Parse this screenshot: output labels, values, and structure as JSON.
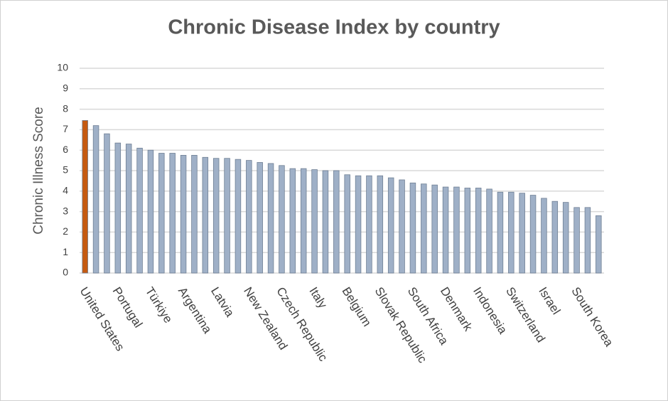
{
  "chart_data": {
    "type": "bar",
    "title": "Chronic Disease Index by country",
    "y_label": "Chronic Illness Score",
    "categories": [
      "United States",
      null,
      null,
      "Portugal",
      null,
      null,
      "Türkiye",
      null,
      null,
      "Argentina",
      null,
      null,
      "Latvia",
      null,
      null,
      "New Zealand",
      null,
      null,
      "Czech Republic",
      null,
      null,
      "Italy",
      null,
      null,
      "Belgium",
      null,
      null,
      "Slovak Republic",
      null,
      null,
      "South Africa",
      null,
      null,
      "Denmark",
      null,
      null,
      "Indonesia",
      null,
      null,
      "Switzerland",
      null,
      null,
      "Israel",
      null,
      null,
      "South Korea",
      null,
      null
    ],
    "values": [
      7.45,
      7.2,
      6.8,
      6.35,
      6.3,
      6.1,
      6.0,
      5.85,
      5.85,
      5.75,
      5.75,
      5.65,
      5.6,
      5.6,
      5.55,
      5.5,
      5.4,
      5.35,
      5.25,
      5.1,
      5.1,
      5.05,
      5.0,
      5.0,
      4.8,
      4.75,
      4.75,
      4.75,
      4.65,
      4.55,
      4.4,
      4.35,
      4.3,
      4.2,
      4.2,
      4.15,
      4.15,
      4.1,
      3.95,
      3.95,
      3.9,
      3.8,
      3.65,
      3.5,
      3.45,
      3.2,
      3.2,
      2.8
    ],
    "colors": [
      "#c55a11",
      "#9fb0c7",
      "#9fb0c7",
      "#9fb0c7",
      "#9fb0c7",
      "#9fb0c7",
      "#9fb0c7",
      "#9fb0c7",
      "#9fb0c7",
      "#9fb0c7",
      "#9fb0c7",
      "#9fb0c7",
      "#9fb0c7",
      "#9fb0c7",
      "#9fb0c7",
      "#9fb0c7",
      "#9fb0c7",
      "#9fb0c7",
      "#9fb0c7",
      "#9fb0c7",
      "#9fb0c7",
      "#9fb0c7",
      "#9fb0c7",
      "#9fb0c7",
      "#9fb0c7",
      "#9fb0c7",
      "#9fb0c7",
      "#9fb0c7",
      "#9fb0c7",
      "#9fb0c7",
      "#9fb0c7",
      "#9fb0c7",
      "#9fb0c7",
      "#9fb0c7",
      "#9fb0c7",
      "#9fb0c7",
      "#9fb0c7",
      "#9fb0c7",
      "#9fb0c7",
      "#9fb0c7",
      "#9fb0c7",
      "#9fb0c7",
      "#9fb0c7",
      "#9fb0c7",
      "#9fb0c7",
      "#9fb0c7",
      "#9fb0c7",
      "#9fb0c7"
    ],
    "ylim": [
      0,
      10
    ],
    "yticks": [
      0,
      1,
      2,
      3,
      4,
      5,
      6,
      7,
      8,
      9,
      10
    ],
    "grid": true
  }
}
